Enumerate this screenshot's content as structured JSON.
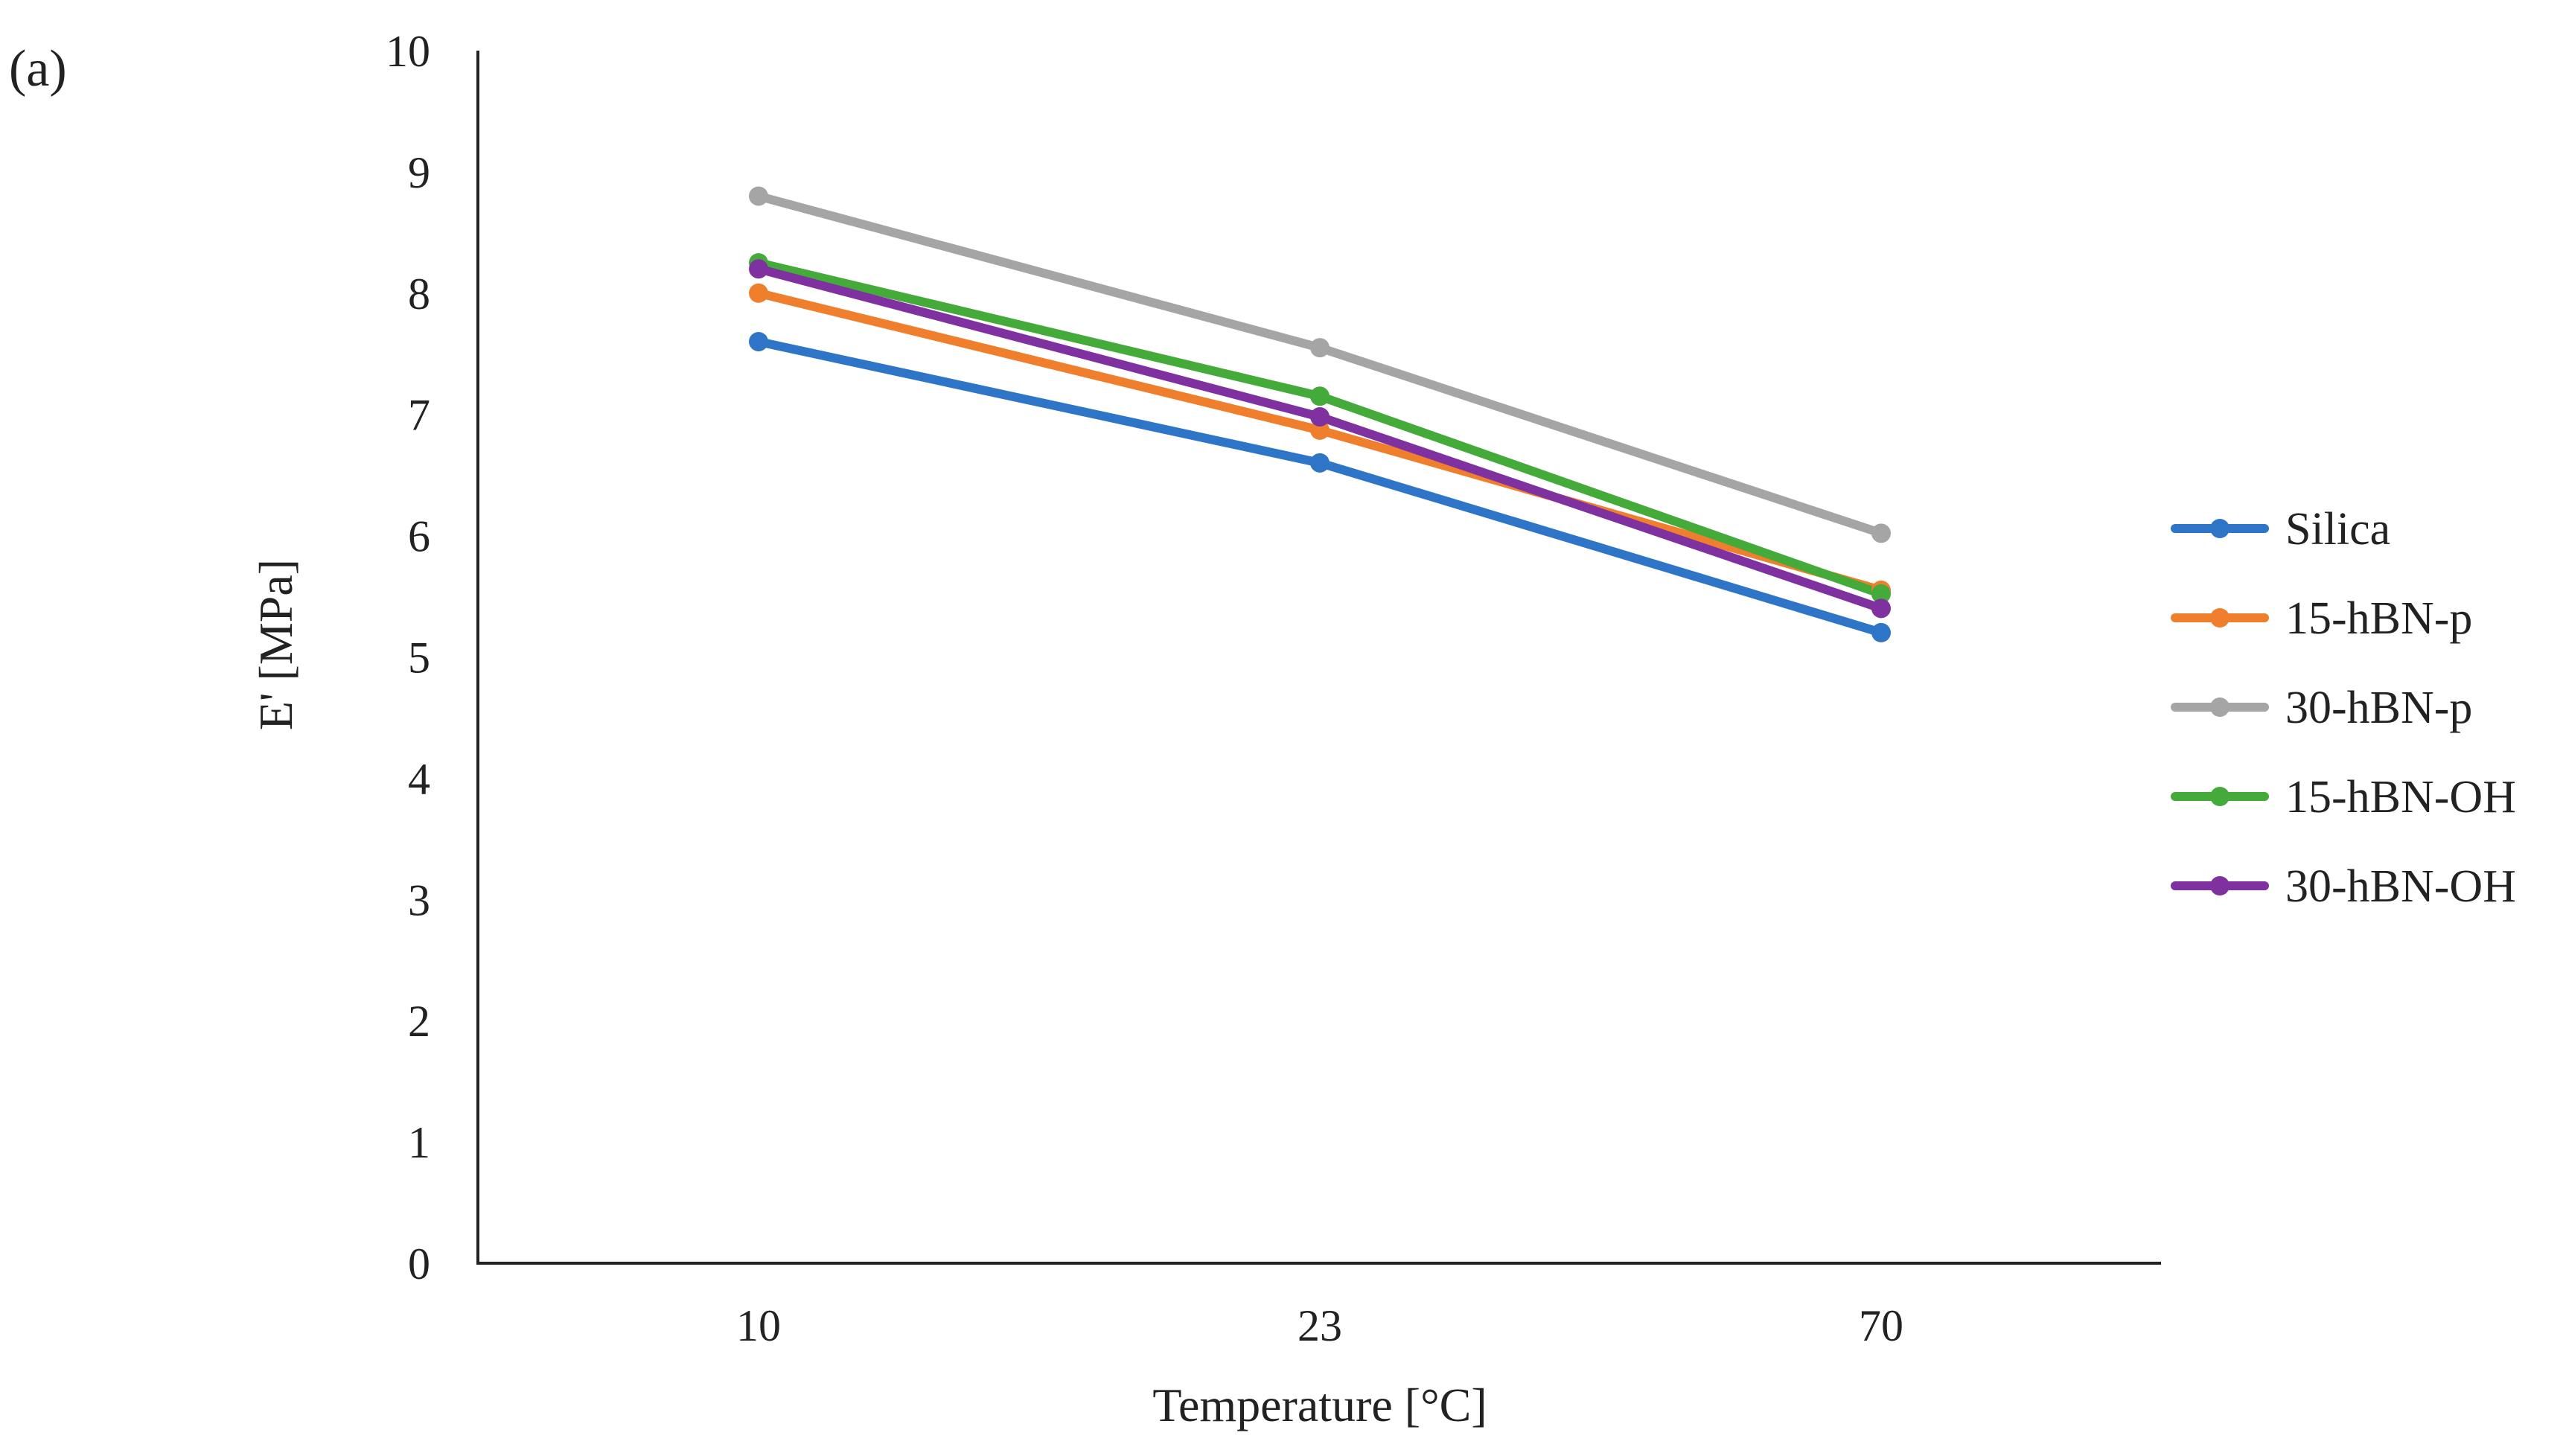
{
  "panel_label": "(a)",
  "chart_data": {
    "type": "line",
    "title": "",
    "xlabel": "Temperature [°C]",
    "ylabel": "E' [MPa]",
    "categories": [
      "10",
      "23",
      "70"
    ],
    "ylim": [
      0,
      10
    ],
    "yticks": [
      "0",
      "1",
      "2",
      "3",
      "4",
      "5",
      "6",
      "7",
      "8",
      "9",
      "10"
    ],
    "grid": false,
    "legend_position": "right",
    "series": [
      {
        "name": "Silica",
        "color": "#2e75c8",
        "values": [
          7.6,
          6.6,
          5.2
        ]
      },
      {
        "name": "15-hBN-p",
        "color": "#f07f2d",
        "values": [
          8.0,
          6.87,
          5.55
        ]
      },
      {
        "name": "30-hBN-p",
        "color": "#a5a5a5",
        "values": [
          8.8,
          7.55,
          6.02
        ]
      },
      {
        "name": "15-hBN-OH",
        "color": "#44aa3a",
        "values": [
          8.25,
          7.15,
          5.52
        ]
      },
      {
        "name": "30-hBN-OH",
        "color": "#7f31a0",
        "values": [
          8.2,
          6.98,
          5.4
        ]
      }
    ]
  }
}
